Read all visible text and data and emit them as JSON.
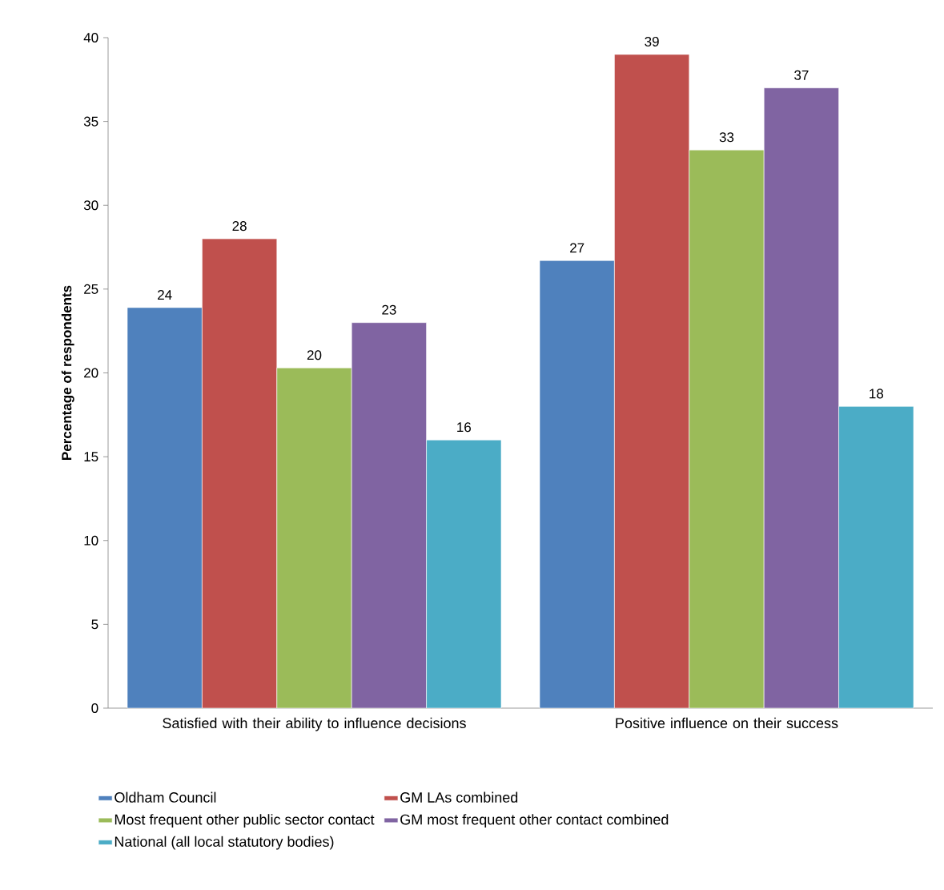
{
  "chart_data": {
    "type": "bar",
    "ylabel": "**Percentage of respondents**",
    "categories": [
      "Satisfied with their ability to influence decisions",
      "Positive influence on their success"
    ],
    "series": [
      {
        "name": "Oldham Council",
        "color": "#4f81bd",
        "values": [
          23.9,
          26.7
        ],
        "value_labels": [
          "24",
          "27"
        ]
      },
      {
        "name": "GM LAs combined",
        "color": "#c0504d",
        "values": [
          28.0,
          39.0
        ],
        "value_labels": [
          "28",
          "39"
        ]
      },
      {
        "name": "Most frequent other public sector contact",
        "color": "#9bbb59",
        "values": [
          20.3,
          33.3
        ],
        "value_labels": [
          "20",
          "33"
        ]
      },
      {
        "name": "GM most frequent other contact combined",
        "color": "#8064a2",
        "values": [
          23.0,
          37.0
        ],
        "value_labels": [
          "23",
          "37"
        ]
      },
      {
        "name": "National (all local statutory bodies)",
        "color": "#4bacc6",
        "values": [
          16.0,
          18.0
        ],
        "value_labels": [
          "16",
          "18"
        ]
      }
    ],
    "ylim": [
      0,
      40
    ],
    "yticks": [
      0,
      5,
      10,
      15,
      20,
      25,
      30,
      35,
      40
    ],
    "grid": false,
    "legend": "bottom"
  }
}
